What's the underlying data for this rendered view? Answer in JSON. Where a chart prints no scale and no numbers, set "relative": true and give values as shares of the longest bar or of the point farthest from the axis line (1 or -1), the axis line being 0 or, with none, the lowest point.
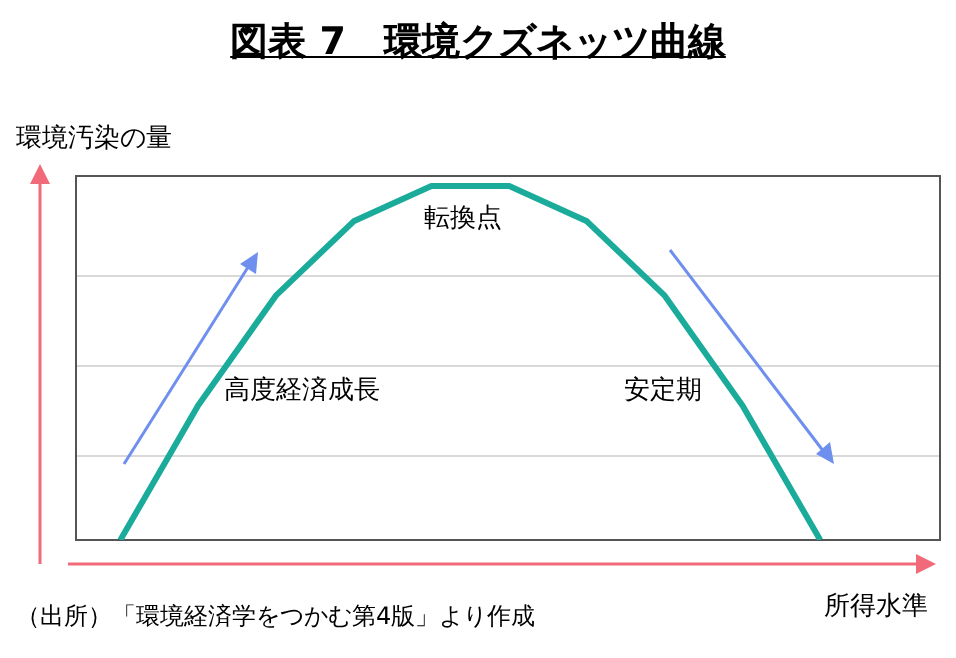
{
  "chart_data": {
    "type": "line",
    "title": "図表 7　環境クズネッツ曲線",
    "ylabel": "環境汚染の量",
    "xlabel": "所得水準",
    "relative": true,
    "grid": "y",
    "marker": "none",
    "categories": [
      null,
      null,
      null,
      null,
      null,
      null,
      null,
      null,
      null,
      null
    ],
    "series": [
      {
        "color": "#1aab9b",
        "values": [
          0,
          0.38,
          0.69,
          0.9,
          1,
          1,
          0.9,
          0.69,
          0.38,
          0
        ]
      }
    ],
    "annotations": [
      "転換点",
      "高度経済成長",
      "安定期",
      "（出所）「環境経済学をつかむ第4版」より作成"
    ]
  }
}
